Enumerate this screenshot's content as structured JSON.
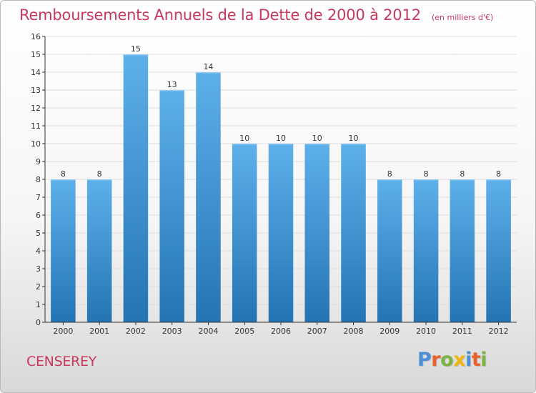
{
  "title": "Remboursements Annuels de la Dette de 2000 à 2012",
  "unit_note": "(en milliers d'€)",
  "place": "CENSEREY",
  "logo": {
    "text": "Proxiti",
    "letters": [
      {
        "ch": "P",
        "color": "#4a90d9"
      },
      {
        "ch": "r",
        "color": "#e8632b"
      },
      {
        "ch": "o",
        "color": "#7cb342"
      },
      {
        "ch": "x",
        "color": "#f2b70f"
      },
      {
        "ch": "i",
        "color": "#4a90d9"
      },
      {
        "ch": "t",
        "color": "#e8632b"
      },
      {
        "ch": "i",
        "color": "#7cb342"
      }
    ]
  },
  "colors": {
    "accent": "#c8385e",
    "bar_top": "#5eb0ea",
    "bar_bottom": "#2474b4",
    "grid": "#dedede",
    "axis": "#333333"
  },
  "chart_data": {
    "type": "bar",
    "categories": [
      "2000",
      "2001",
      "2002",
      "2003",
      "2004",
      "2005",
      "2006",
      "2007",
      "2008",
      "2009",
      "2010",
      "2011",
      "2012"
    ],
    "values": [
      8,
      8,
      15,
      13,
      14,
      10,
      10,
      10,
      10,
      8,
      8,
      8,
      8
    ],
    "data_labels": [
      "8",
      "8",
      "15",
      "13",
      "14",
      "10",
      "10",
      "10",
      "10",
      "8",
      "8",
      "8",
      "8"
    ],
    "ylim": [
      0,
      16
    ],
    "yticks": [
      0,
      1,
      2,
      3,
      4,
      5,
      6,
      7,
      8,
      9,
      10,
      11,
      12,
      13,
      14,
      15,
      16
    ],
    "grid": true,
    "xlabel": "",
    "ylabel": ""
  }
}
